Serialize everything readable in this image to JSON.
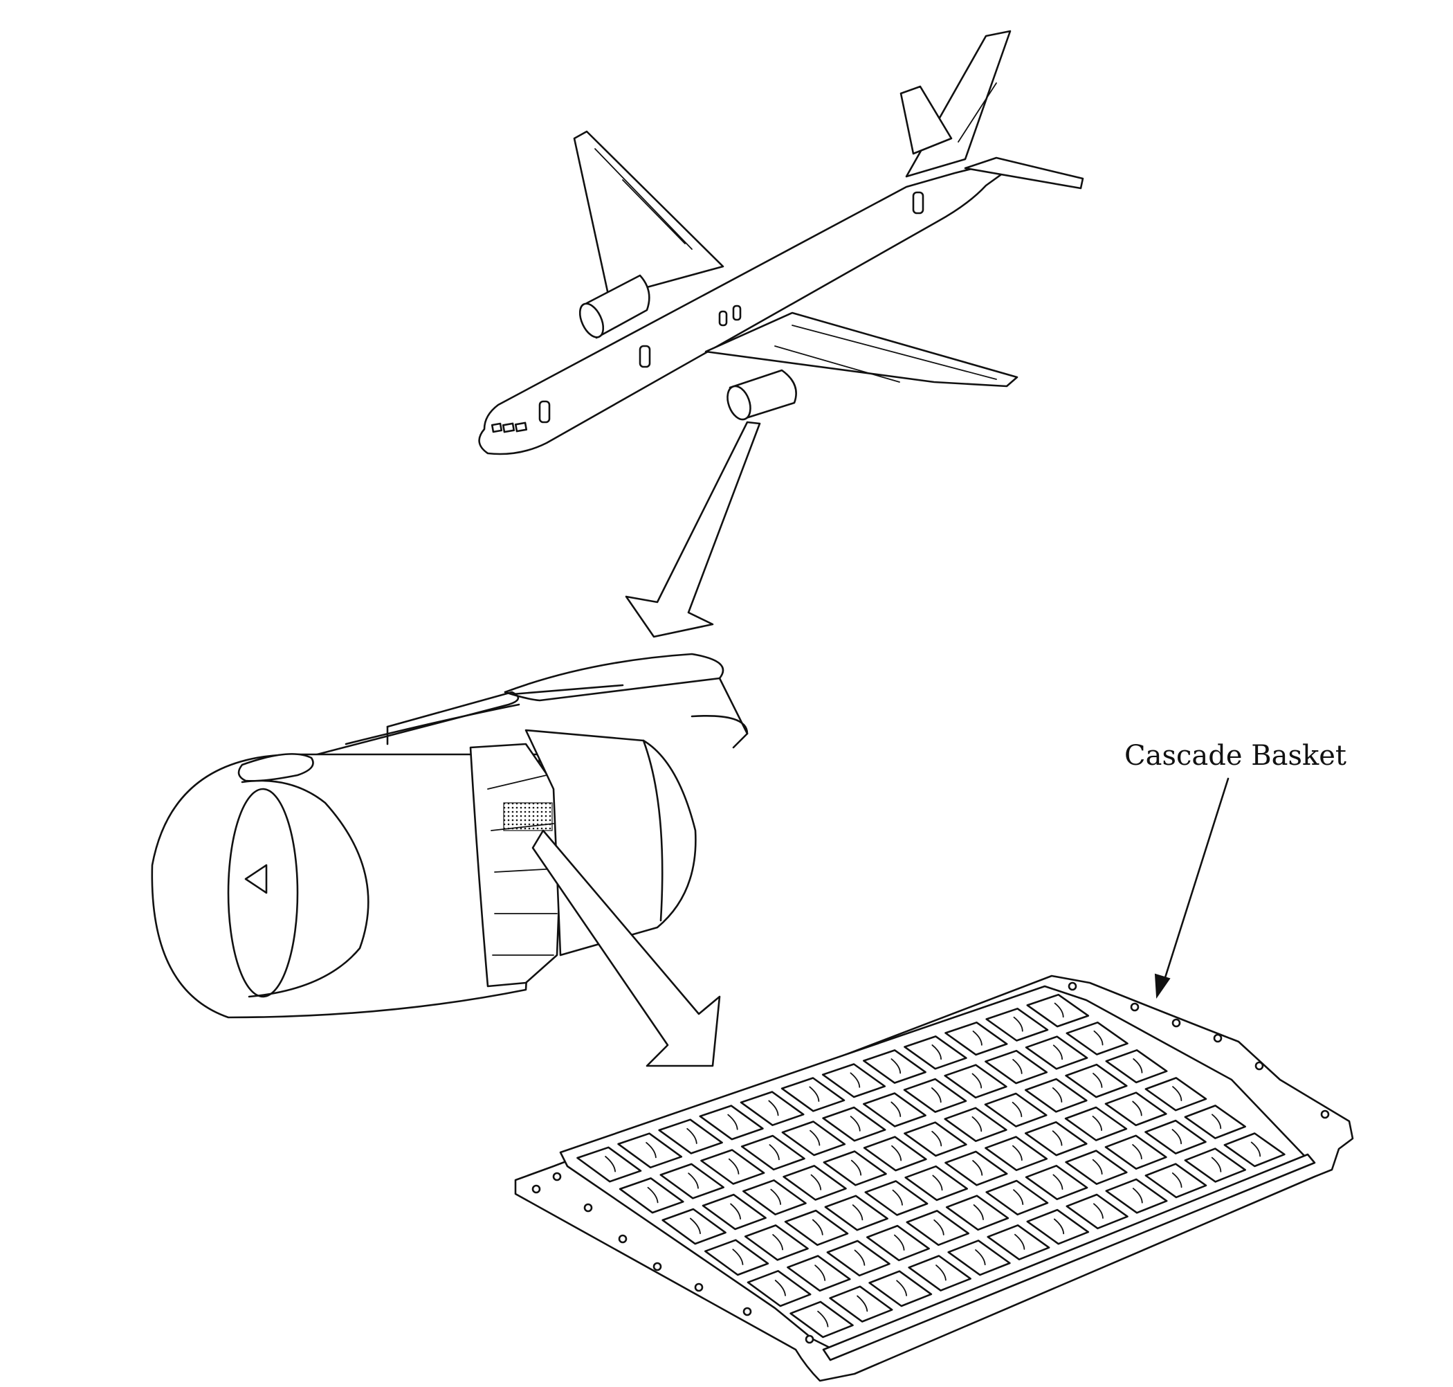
{
  "labels": {
    "cascade_basket": "Cascade Basket"
  },
  "colors": {
    "ink": "#111111",
    "background": "#ffffff"
  },
  "grid": {
    "rows": 6,
    "columns": 12
  }
}
